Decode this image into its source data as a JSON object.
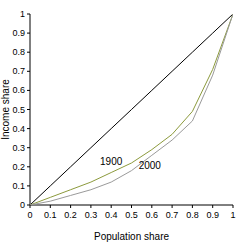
{
  "chart_data": {
    "type": "line",
    "x_label": "Population share",
    "y_label": "Income share",
    "x": [
      0,
      0.1,
      0.2,
      0.3,
      0.4,
      0.5,
      0.6,
      0.7,
      0.8,
      0.9,
      1
    ],
    "series": [
      {
        "color": "#000000",
        "values": [
          0,
          0.1,
          0.2,
          0.3,
          0.4,
          0.5,
          0.6,
          0.7,
          0.8,
          0.9,
          1
        ]
      },
      {
        "name": "1900",
        "color": "#8c9a3c",
        "values": [
          0,
          0.04,
          0.08,
          0.12,
          0.17,
          0.22,
          0.29,
          0.37,
          0.49,
          0.71,
          1
        ]
      },
      {
        "name": "2000",
        "color": "#9a9a9a",
        "values": [
          0,
          0.02,
          0.05,
          0.08,
          0.12,
          0.18,
          0.26,
          0.34,
          0.44,
          0.68,
          1
        ]
      }
    ],
    "xlim": [
      0,
      1
    ],
    "ylim": [
      0,
      1
    ],
    "xticks": [
      0,
      0.1,
      0.2,
      0.3,
      0.4,
      0.5,
      0.6,
      0.7,
      0.8,
      0.9,
      1
    ],
    "yticks": [
      0,
      0.1,
      0.2,
      0.3,
      0.4,
      0.5,
      0.6,
      0.7,
      0.8,
      0.9,
      1
    ],
    "grid": false
  }
}
